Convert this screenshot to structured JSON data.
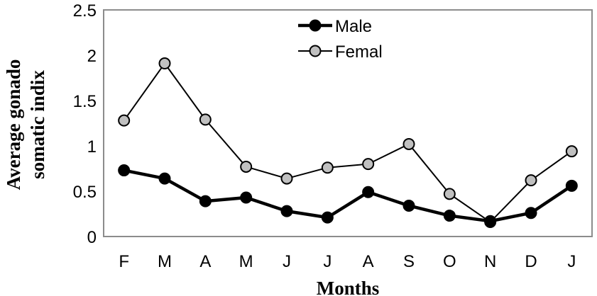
{
  "chart_data": {
    "type": "line",
    "title": "",
    "xlabel": "Months",
    "ylabel_lines": [
      "Average gonado",
      "somatic indix"
    ],
    "categories": [
      "F",
      "M",
      "A",
      "M",
      "J",
      "J",
      "A",
      "S",
      "O",
      "N",
      "D",
      "J"
    ],
    "ylim": [
      0,
      2.5
    ],
    "yticks": [
      "0",
      "0.5",
      "1",
      "1.5",
      "2",
      "2.5"
    ],
    "grid": false,
    "legend": "top-center",
    "series": [
      {
        "name": "Male",
        "line_color": "#000000",
        "marker_fill": "#000000",
        "values": [
          0.73,
          0.64,
          0.39,
          0.43,
          0.28,
          0.21,
          0.49,
          0.34,
          0.23,
          0.17,
          0.26,
          0.56
        ]
      },
      {
        "name": "Femal",
        "line_color": "#000000",
        "marker_fill": "#c0c0c0",
        "values": [
          1.28,
          1.91,
          1.29,
          0.77,
          0.64,
          0.76,
          0.8,
          1.02,
          0.47,
          0.16,
          0.62,
          0.94
        ]
      }
    ]
  }
}
